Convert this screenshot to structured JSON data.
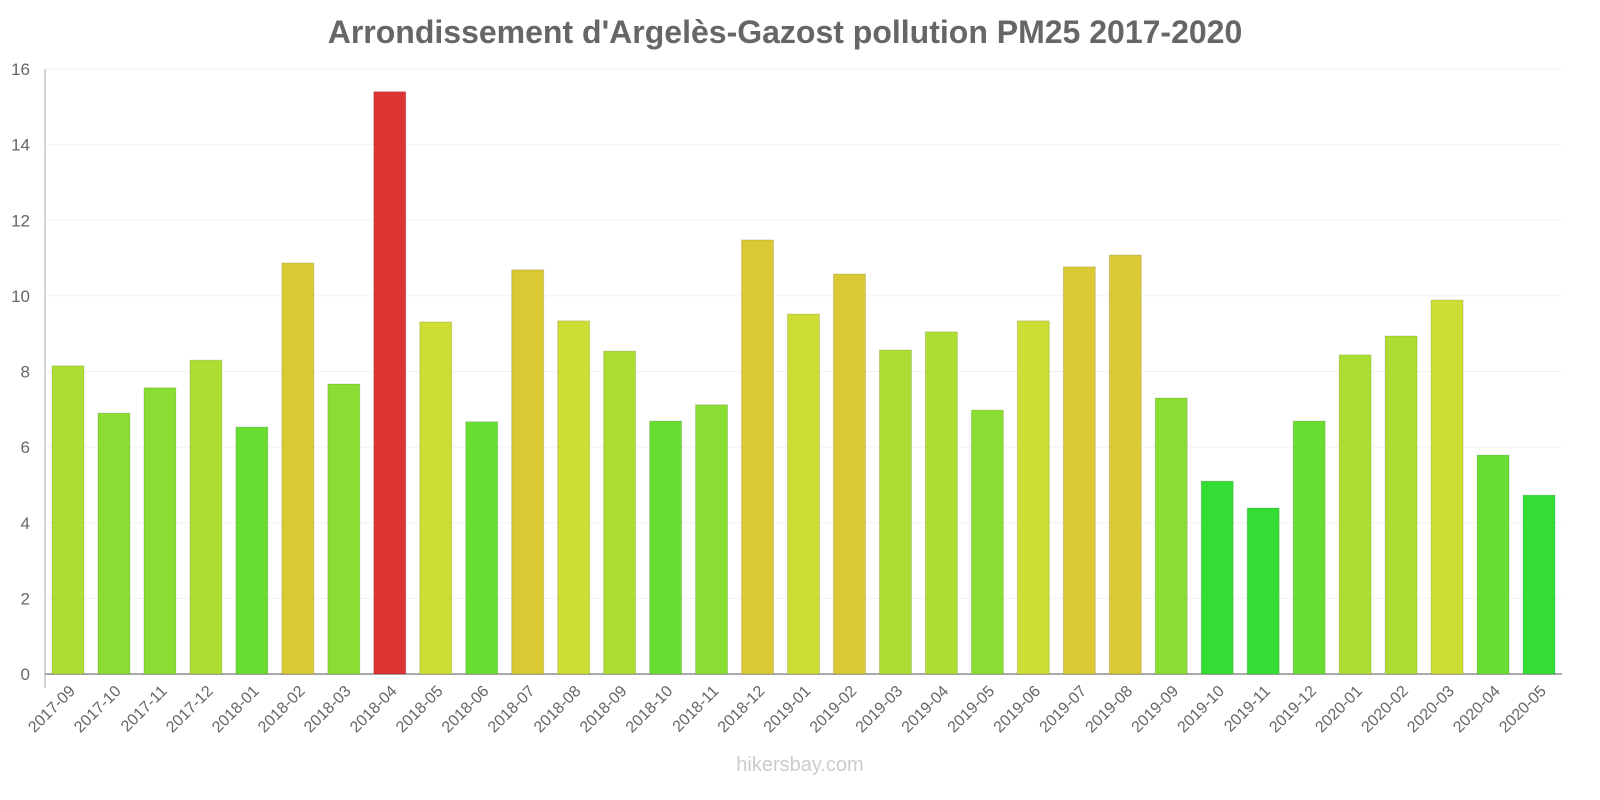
{
  "chart_data": {
    "type": "bar",
    "title": "Arrondissement d'Argelès-Gazost pollution PM25 2017-2020",
    "xlabel": "",
    "ylabel": "",
    "ylim": [
      0,
      16
    ],
    "yticks": [
      0,
      2,
      4,
      6,
      8,
      10,
      12,
      14,
      16
    ],
    "grid": true,
    "categories": [
      "2017-09",
      "2017-10",
      "2017-11",
      "2017-12",
      "2018-01",
      "2018-02",
      "2018-03",
      "2018-04",
      "2018-05",
      "2018-06",
      "2018-07",
      "2018-08",
      "2018-09",
      "2018-10",
      "2018-11",
      "2018-12",
      "2019-01",
      "2019-02",
      "2019-03",
      "2019-04",
      "2019-05",
      "2019-06",
      "2019-07",
      "2019-08",
      "2019-09",
      "2019-10",
      "2019-11",
      "2019-12",
      "2020-01",
      "2020-02",
      "2020-03",
      "2020-04",
      "2020-05"
    ],
    "values": [
      8.15,
      6.9,
      7.57,
      8.3,
      6.53,
      10.87,
      7.67,
      15.4,
      9.31,
      6.67,
      10.69,
      9.34,
      8.54,
      6.69,
      7.12,
      11.48,
      9.52,
      10.58,
      8.57,
      9.05,
      6.98,
      9.34,
      10.77,
      11.08,
      7.3,
      5.1,
      4.39,
      6.69,
      8.44,
      8.94,
      9.89,
      5.79,
      4.73
    ]
  },
  "watermark": "hikersbay.com"
}
